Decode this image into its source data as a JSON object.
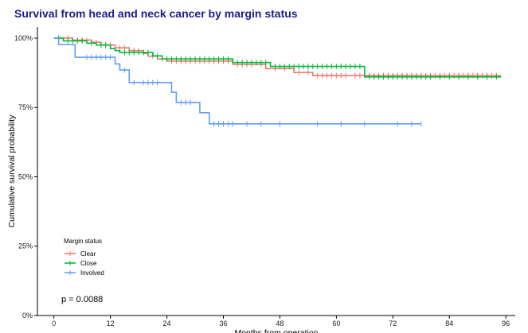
{
  "chart_data": {
    "type": "line",
    "title": "Survival from head and neck cancer by margin status",
    "xlabel": "Months from operation",
    "ylabel": "Cumulative survival probability",
    "xlim": [
      -3.5,
      98
    ],
    "ylim": [
      0,
      1.04
    ],
    "x_ticks": [
      0,
      12,
      24,
      36,
      48,
      60,
      72,
      84,
      96
    ],
    "x_tick_labels": [
      "0",
      "12",
      "24",
      "36",
      "48",
      "60",
      "72",
      "84",
      "96"
    ],
    "y_ticks": [
      0,
      0.25,
      0.5,
      0.75,
      1.0
    ],
    "y_tick_labels": [
      "0%",
      "25%",
      "50%",
      "75%",
      "100%"
    ],
    "grid": false,
    "legend": {
      "title": "Margin status",
      "placement": "bottom-left"
    },
    "annotation": "p = 0.0088",
    "series": [
      {
        "name": "Clear",
        "color": "#F8766D",
        "steps": [
          [
            0,
            1.0
          ],
          [
            4,
            0.993
          ],
          [
            8,
            0.985
          ],
          [
            10,
            0.975
          ],
          [
            13,
            0.965
          ],
          [
            16,
            0.955
          ],
          [
            19,
            0.945
          ],
          [
            20,
            0.935
          ],
          [
            22,
            0.925
          ],
          [
            24,
            0.917
          ],
          [
            38,
            0.905
          ],
          [
            45,
            0.89
          ],
          [
            51,
            0.876
          ],
          [
            55,
            0.865
          ],
          [
            95,
            0.865
          ]
        ],
        "censored": [
          1,
          3,
          5,
          6,
          7,
          9,
          11,
          12,
          14,
          15,
          17,
          18,
          21,
          23,
          25,
          26,
          27,
          28,
          29,
          30,
          31,
          32,
          33,
          34,
          35,
          36,
          37,
          39,
          40,
          41,
          42,
          44,
          47,
          49,
          52,
          54,
          56,
          57,
          58,
          59,
          60,
          61,
          62,
          64,
          65,
          67,
          68,
          69,
          70,
          71,
          72,
          73,
          74,
          75,
          76,
          77,
          78,
          79,
          80,
          81,
          82,
          83,
          84,
          85,
          86,
          87,
          88,
          89,
          90,
          91,
          92,
          93,
          94
        ]
      },
      {
        "name": "Close",
        "color": "#00BA38",
        "steps": [
          [
            0,
            1.0
          ],
          [
            2,
            0.99
          ],
          [
            7,
            0.982
          ],
          [
            9,
            0.975
          ],
          [
            12,
            0.962
          ],
          [
            13,
            0.955
          ],
          [
            14,
            0.948
          ],
          [
            21,
            0.936
          ],
          [
            23,
            0.925
          ],
          [
            38,
            0.912
          ],
          [
            46,
            0.898
          ],
          [
            66,
            0.86
          ],
          [
            95,
            0.86
          ]
        ],
        "censored": [
          1,
          3,
          4,
          5,
          6,
          8,
          10,
          11,
          15,
          16,
          17,
          18,
          19,
          20,
          22,
          24,
          25,
          26,
          27,
          28,
          29,
          30,
          31,
          32,
          33,
          34,
          35,
          36,
          37,
          39,
          40,
          41,
          42,
          43,
          44,
          45,
          47,
          48,
          49,
          50,
          51,
          52,
          53,
          54,
          55,
          56,
          57,
          58,
          59,
          60,
          61,
          62,
          63,
          64,
          65,
          67,
          68,
          69,
          70,
          71,
          72,
          73,
          74,
          75,
          76,
          77,
          78,
          79,
          80,
          82,
          84,
          86,
          88,
          90,
          92,
          94
        ]
      },
      {
        "name": "Involved",
        "color": "#619CFF",
        "steps": [
          [
            0,
            1.0
          ],
          [
            1,
            0.977
          ],
          [
            4.5,
            0.931
          ],
          [
            13,
            0.907
          ],
          [
            14,
            0.885
          ],
          [
            16,
            0.84
          ],
          [
            25,
            0.805
          ],
          [
            26,
            0.768
          ],
          [
            31,
            0.731
          ],
          [
            33,
            0.691
          ],
          [
            78,
            0.691
          ]
        ],
        "censored": [
          7,
          8,
          9,
          10,
          11,
          12,
          15,
          17,
          19,
          20,
          21,
          22,
          27,
          28,
          29,
          34,
          35,
          36,
          37,
          38,
          41,
          44,
          48,
          56,
          61,
          66,
          73,
          76,
          78
        ]
      }
    ]
  }
}
